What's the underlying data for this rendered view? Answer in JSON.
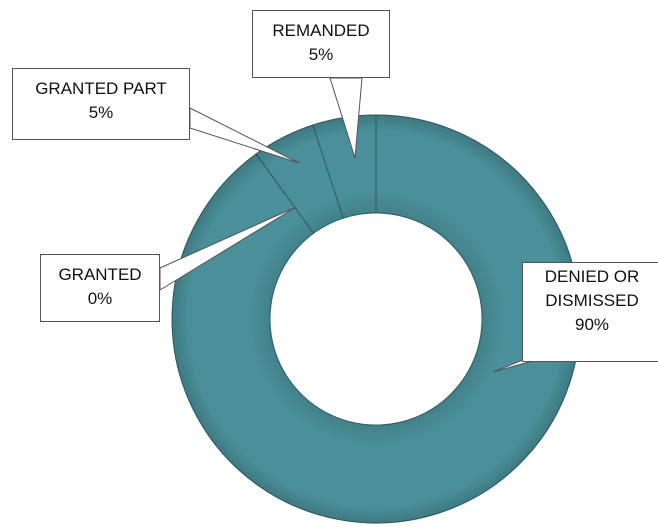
{
  "chart_data": {
    "type": "donut",
    "categories": [
      "DENIED OR DISMISSED",
      "GRANTED",
      "GRANTED PART",
      "REMANDED"
    ],
    "values": [
      90,
      0,
      5,
      5
    ],
    "value_labels": [
      "90%",
      "0%",
      "5%",
      "5%"
    ],
    "color": "#4a8f99"
  }
}
